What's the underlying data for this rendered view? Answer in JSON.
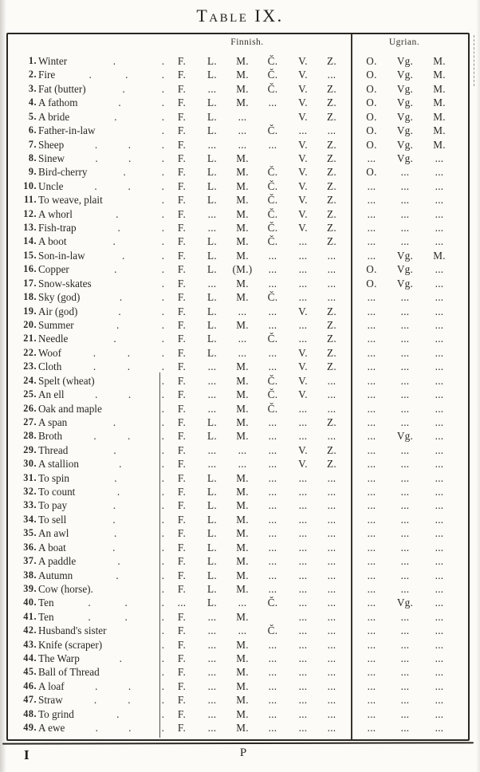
{
  "page": {
    "title": "Table IX.",
    "footer_left": "I",
    "footer_center": "P"
  },
  "table": {
    "groups": [
      {
        "label": "Finnish."
      },
      {
        "label": "Ugrian."
      }
    ],
    "empty_marker": "...",
    "rows": [
      {
        "no": "1.",
        "term": "Winter",
        "leader_dots": 2,
        "finnish": [
          "F.",
          "L.",
          "M.",
          "Č.",
          "V.",
          "Z."
        ],
        "ugrian": [
          "O.",
          "Vg.",
          "M."
        ]
      },
      {
        "no": "2.",
        "term": "Fire",
        "leader_dots": 3,
        "finnish": [
          "F.",
          "L.",
          "M.",
          "Č.",
          "V.",
          "..."
        ],
        "ugrian": [
          "O.",
          "Vg.",
          "M."
        ]
      },
      {
        "no": "3.",
        "term": "Fat (butter)",
        "leader_dots": 2,
        "finnish": [
          "F.",
          "...",
          "M.",
          "Č.",
          "V.",
          "Z."
        ],
        "ugrian": [
          "O.",
          "Vg.",
          "M."
        ]
      },
      {
        "no": "4.",
        "term": "A fathom",
        "leader_dots": 2,
        "finnish": [
          "F.",
          "L.",
          "M.",
          "...",
          "V.",
          "Z."
        ],
        "ugrian": [
          "O.",
          "Vg.",
          "M."
        ]
      },
      {
        "no": "5.",
        "term": "A bride",
        "leader_dots": 2,
        "finnish": [
          "F.",
          "L.",
          "...",
          "",
          "V.",
          "Z."
        ],
        "ugrian": [
          "O.",
          "Vg.",
          "M."
        ]
      },
      {
        "no": "6.",
        "term": "Father-in-law",
        "leader_dots": 1,
        "finnish": [
          "F.",
          "L.",
          "...",
          "Č.",
          "...",
          "..."
        ],
        "ugrian": [
          "O.",
          "Vg.",
          "M."
        ]
      },
      {
        "no": "7.",
        "term": "Sheep",
        "leader_dots": 3,
        "finnish": [
          "F.",
          "...",
          "...",
          "...",
          "V.",
          "Z."
        ],
        "ugrian": [
          "O.",
          "Vg.",
          "M."
        ]
      },
      {
        "no": "8.",
        "term": "Sinew",
        "leader_dots": 3,
        "finnish": [
          "F.",
          "L.",
          "M.",
          "",
          "V.",
          "Z."
        ],
        "ugrian": [
          "...",
          "Vg.",
          "..."
        ]
      },
      {
        "no": "9.",
        "term": "Bird-cherry",
        "leader_dots": 2,
        "finnish": [
          "F.",
          "L.",
          "M.",
          "Č.",
          "V.",
          "Z."
        ],
        "ugrian": [
          "O.",
          "...",
          "..."
        ]
      },
      {
        "no": "10.",
        "term": "Uncle",
        "leader_dots": 3,
        "finnish": [
          "F.",
          "L.",
          "M.",
          "Č.",
          "V.",
          "Z."
        ],
        "ugrian": [
          "...",
          "...",
          "..."
        ]
      },
      {
        "no": "11.",
        "term": "To weave, plait",
        "leader_dots": 1,
        "finnish": [
          "F.",
          "L.",
          "M.",
          "Č.",
          "V.",
          "Z."
        ],
        "ugrian": [
          "...",
          "...",
          "..."
        ]
      },
      {
        "no": "12.",
        "term": "A whorl",
        "leader_dots": 2,
        "finnish": [
          "F.",
          "...",
          "M.",
          "Č.",
          "V.",
          "Z."
        ],
        "ugrian": [
          "...",
          "...",
          "..."
        ]
      },
      {
        "no": "13.",
        "term": "Fish-trap",
        "leader_dots": 2,
        "finnish": [
          "F.",
          "...",
          "M.",
          "Č.",
          "V.",
          "Z."
        ],
        "ugrian": [
          "...",
          "...",
          "..."
        ]
      },
      {
        "no": "14.",
        "term": "A boot",
        "leader_dots": 2,
        "finnish": [
          "F.",
          "L.",
          "M.",
          "Č.",
          "...",
          "Z."
        ],
        "ugrian": [
          "...",
          "...",
          "..."
        ]
      },
      {
        "no": "15.",
        "term": "Son-in-law",
        "leader_dots": 2,
        "finnish": [
          "F.",
          "L.",
          "M.",
          "...",
          "...",
          "..."
        ],
        "ugrian": [
          "...",
          "Vg.",
          "M."
        ]
      },
      {
        "no": "16.",
        "term": "Copper",
        "leader_dots": 2,
        "finnish": [
          "F.",
          "L.",
          "(M.)",
          "...",
          "...",
          "..."
        ],
        "ugrian": [
          "O.",
          "Vg.",
          "..."
        ]
      },
      {
        "no": "17.",
        "term": "Snow-skates",
        "leader_dots": 1,
        "finnish": [
          "F.",
          "...",
          "M.",
          "...",
          "...",
          "..."
        ],
        "ugrian": [
          "O.",
          "Vg.",
          "..."
        ]
      },
      {
        "no": "18.",
        "term": "Sky (god)",
        "leader_dots": 2,
        "finnish": [
          "F.",
          "L.",
          "M.",
          "Č.",
          "...",
          "..."
        ],
        "ugrian": [
          "...",
          "...",
          "..."
        ]
      },
      {
        "no": "19.",
        "term": "Air (god)",
        "leader_dots": 2,
        "finnish": [
          "F.",
          "L.",
          "...",
          "...",
          "V.",
          "Z."
        ],
        "ugrian": [
          "...",
          "...",
          "..."
        ]
      },
      {
        "no": "20.",
        "term": "Summer",
        "leader_dots": 2,
        "finnish": [
          "F.",
          "L.",
          "M.",
          "...",
          "...",
          "Z."
        ],
        "ugrian": [
          "...",
          "...",
          "..."
        ]
      },
      {
        "no": "21.",
        "term": "Needle",
        "leader_dots": 2,
        "finnish": [
          "F.",
          "L.",
          "...",
          "Č.",
          "...",
          "Z."
        ],
        "ugrian": [
          "...",
          "...",
          "..."
        ]
      },
      {
        "no": "22.",
        "term": "Woof",
        "leader_dots": 3,
        "finnish": [
          "F.",
          "L.",
          "...",
          "...",
          "V.",
          "Z."
        ],
        "ugrian": [
          "...",
          "...",
          "..."
        ]
      },
      {
        "no": "23.",
        "term": "Cloth",
        "leader_dots": 3,
        "finnish": [
          "F.",
          "...",
          "M.",
          "...",
          "V.",
          "Z."
        ],
        "ugrian": [
          "...",
          "...",
          "..."
        ]
      },
      {
        "no": "24.",
        "term": "Spelt (wheat)",
        "leader_dots": 1,
        "finnish": [
          "F.",
          "...",
          "M.",
          "Č.",
          "V.",
          "..."
        ],
        "ugrian": [
          "...",
          "...",
          "..."
        ]
      },
      {
        "no": "25.",
        "term": "An ell",
        "leader_dots": 3,
        "finnish": [
          "F.",
          "...",
          "M.",
          "Č.",
          "V.",
          "..."
        ],
        "ugrian": [
          "...",
          "...",
          "..."
        ]
      },
      {
        "no": "26.",
        "term": "Oak and maple",
        "leader_dots": 1,
        "finnish": [
          "F.",
          "...",
          "M.",
          "Č.",
          "...",
          "..."
        ],
        "ugrian": [
          "...",
          "...",
          "..."
        ]
      },
      {
        "no": "27.",
        "term": "A span",
        "leader_dots": 2,
        "finnish": [
          "F.",
          "L.",
          "M.",
          "...",
          "...",
          "Z."
        ],
        "ugrian": [
          "...",
          "...",
          "..."
        ]
      },
      {
        "no": "28.",
        "term": "Broth",
        "leader_dots": 3,
        "finnish": [
          "F.",
          "L.",
          "M.",
          "...",
          "...",
          "..."
        ],
        "ugrian": [
          "...",
          "Vg.",
          "..."
        ]
      },
      {
        "no": "29.",
        "term": "Thread",
        "leader_dots": 2,
        "finnish": [
          "F.",
          "...",
          "...",
          "...",
          "V.",
          "Z."
        ],
        "ugrian": [
          "...",
          "...",
          "..."
        ]
      },
      {
        "no": "30.",
        "term": "A stallion",
        "leader_dots": 2,
        "finnish": [
          "F.",
          "...",
          "...",
          "...",
          "V.",
          "Z."
        ],
        "ugrian": [
          "...",
          "...",
          "..."
        ]
      },
      {
        "no": "31.",
        "term": "To spin",
        "leader_dots": 2,
        "finnish": [
          "F.",
          "L.",
          "M.",
          "...",
          "...",
          "..."
        ],
        "ugrian": [
          "...",
          "...",
          "..."
        ]
      },
      {
        "no": "32.",
        "term": "To count",
        "leader_dots": 2,
        "finnish": [
          "F.",
          "L.",
          "M.",
          "...",
          "...",
          "..."
        ],
        "ugrian": [
          "...",
          "...",
          "..."
        ]
      },
      {
        "no": "33.",
        "term": "To pay",
        "leader_dots": 2,
        "finnish": [
          "F.",
          "L.",
          "M.",
          "...",
          "...",
          "..."
        ],
        "ugrian": [
          "...",
          "...",
          "..."
        ]
      },
      {
        "no": "34.",
        "term": "To sell",
        "leader_dots": 2,
        "finnish": [
          "F.",
          "L.",
          "M.",
          "...",
          "...",
          "..."
        ],
        "ugrian": [
          "...",
          "...",
          "..."
        ]
      },
      {
        "no": "35.",
        "term": "An awl",
        "leader_dots": 2,
        "finnish": [
          "F.",
          "L.",
          "M.",
          "...",
          "...",
          "..."
        ],
        "ugrian": [
          "...",
          "...",
          "..."
        ]
      },
      {
        "no": "36.",
        "term": "A boat",
        "leader_dots": 2,
        "finnish": [
          "F.",
          "L.",
          "M.",
          "...",
          "...",
          "..."
        ],
        "ugrian": [
          "...",
          "...",
          "..."
        ]
      },
      {
        "no": "37.",
        "term": "A paddle",
        "leader_dots": 2,
        "finnish": [
          "F.",
          "L.",
          "M.",
          "...",
          "...",
          "..."
        ],
        "ugrian": [
          "...",
          "...",
          "..."
        ]
      },
      {
        "no": "38.",
        "term": "Autumn",
        "leader_dots": 2,
        "finnish": [
          "F.",
          "L.",
          "M.",
          "...",
          "...",
          "..."
        ],
        "ugrian": [
          "...",
          "...",
          "..."
        ]
      },
      {
        "no": "39.",
        "term": "Cow (horse).",
        "leader_dots": 1,
        "finnish": [
          "F.",
          "L.",
          "M.",
          "...",
          "...",
          "..."
        ],
        "ugrian": [
          "...",
          "...",
          "..."
        ]
      },
      {
        "no": "40.",
        "term": "Ten",
        "leader_dots": 3,
        "finnish": [
          "...",
          "L.",
          "...",
          "Č.",
          "...",
          "..."
        ],
        "ugrian": [
          "...",
          "Vg.",
          "..."
        ]
      },
      {
        "no": "41.",
        "term": "Ten",
        "leader_dots": 3,
        "finnish": [
          "F.",
          "...",
          "M.",
          "",
          "...",
          "..."
        ],
        "ugrian": [
          "...",
          "...",
          "..."
        ]
      },
      {
        "no": "42.",
        "term": "Husband's sister",
        "leader_dots": 1,
        "finnish": [
          "F.",
          "...",
          "...",
          "Č.",
          "...",
          "..."
        ],
        "ugrian": [
          "...",
          "...",
          "..."
        ]
      },
      {
        "no": "43.",
        "term": "Knife (scraper)",
        "leader_dots": 1,
        "finnish": [
          "F.",
          "...",
          "M.",
          "...",
          "...",
          "..."
        ],
        "ugrian": [
          "...",
          "...",
          "..."
        ]
      },
      {
        "no": "44.",
        "term": "The Warp",
        "leader_dots": 2,
        "finnish": [
          "F.",
          "...",
          "M.",
          "...",
          "...",
          "..."
        ],
        "ugrian": [
          "...",
          "...",
          "..."
        ]
      },
      {
        "no": "45.",
        "term": "Ball of Thread",
        "leader_dots": 1,
        "finnish": [
          "F.",
          "...",
          "M.",
          "...",
          "...",
          "..."
        ],
        "ugrian": [
          "...",
          "...",
          "..."
        ]
      },
      {
        "no": "46.",
        "term": "A loaf",
        "leader_dots": 3,
        "finnish": [
          "F.",
          "...",
          "M.",
          "...",
          "...",
          "..."
        ],
        "ugrian": [
          "...",
          "...",
          "..."
        ]
      },
      {
        "no": "47.",
        "term": "Straw",
        "leader_dots": 3,
        "finnish": [
          "F.",
          "...",
          "M.",
          "...",
          "...",
          "..."
        ],
        "ugrian": [
          "...",
          "...",
          "..."
        ]
      },
      {
        "no": "48.",
        "term": "To grind",
        "leader_dots": 2,
        "finnish": [
          "F.",
          "...",
          "M.",
          "...",
          "...",
          "..."
        ],
        "ugrian": [
          "...",
          "...",
          "..."
        ]
      },
      {
        "no": "49.",
        "term": "A ewe",
        "leader_dots": 3,
        "finnish": [
          "F.",
          "...",
          "M.",
          "...",
          "...",
          "..."
        ],
        "ugrian": [
          "...",
          "...",
          "..."
        ]
      }
    ]
  }
}
